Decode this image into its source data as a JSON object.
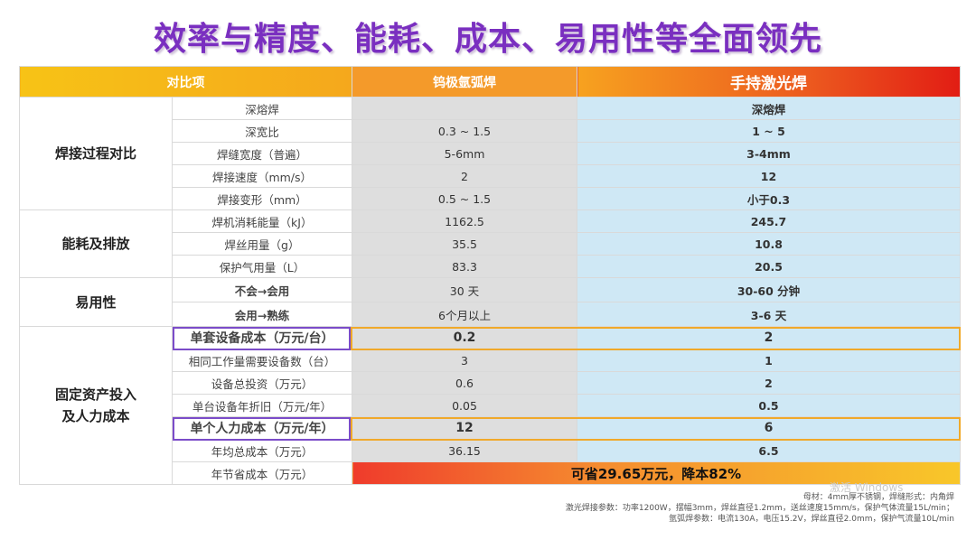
{
  "title": "效率与精度、能耗、成本、易用性等全面领先",
  "headers": {
    "item": "对比项",
    "tig": "钨极氩弧焊",
    "laser": "手持激光焊"
  },
  "categories": {
    "process": "焊接过程对比",
    "energy": "能耗及排放",
    "ease": "易用性",
    "cost_line1": "固定资产投入",
    "cost_line2": "及人力成本"
  },
  "rows": [
    {
      "item": "深熔焊",
      "tig": "",
      "laser": "深熔焊"
    },
    {
      "item": "深宽比",
      "tig": "0.3 ~ 1.5",
      "laser": "1 ~ 5"
    },
    {
      "item": "焊缝宽度（普遍）",
      "tig": "5-6mm",
      "laser": "3-4mm"
    },
    {
      "item": "焊接速度（mm/s）",
      "tig": "2",
      "laser": "12"
    },
    {
      "item": "焊接变形（mm）",
      "tig": "0.5 ~ 1.5",
      "laser": "小于0.3"
    },
    {
      "item": "焊机消耗能量（kJ）",
      "tig": "1162.5",
      "laser": "245.7"
    },
    {
      "item": "焊丝用量（g）",
      "tig": "35.5",
      "laser": "10.8"
    },
    {
      "item": "保护气用量（L）",
      "tig": "83.3",
      "laser": "20.5"
    },
    {
      "item": "不会→会用",
      "tig": "30 天",
      "laser": "30-60 分钟"
    },
    {
      "item": "会用→熟练",
      "tig": "6个月以上",
      "laser": "3-6 天"
    },
    {
      "item": "单套设备成本（万元/台）",
      "tig": "0.2",
      "laser": "2"
    },
    {
      "item": "相同工作量需要设备数（台）",
      "tig": "3",
      "laser": "1"
    },
    {
      "item": "设备总投资（万元）",
      "tig": "0.6",
      "laser": "2"
    },
    {
      "item": "单台设备年折旧（万元/年）",
      "tig": "0.05",
      "laser": "0.5"
    },
    {
      "item": "单个人力成本（万元/年）",
      "tig": "12",
      "laser": "6"
    },
    {
      "item": "年均总成本（万元）",
      "tig": "36.15",
      "laser": "6.5"
    },
    {
      "item": "年节省成本（万元）",
      "saving": "可省29.65万元，降本82%"
    }
  ],
  "notes": {
    "line1": "母材：4mm厚不锈钢，焊缝形式：内角焊",
    "line2": "激光焊接参数：功率1200W，摆幅3mm，焊丝直径1.2mm，送丝速度15mm/s，保护气体流量15L/min；",
    "line3": "氩弧焊参数：电流130A，电压15.2V，焊丝直径2.0mm，保护气流量10L/min"
  },
  "watermark": "激活 Windows",
  "colors": {
    "title": "#7a2fc0",
    "laser_col": "#cfe8f5",
    "tig_col": "#dedede",
    "highlight_purple": "#7b4cc9",
    "highlight_orange": "#f0a92a"
  }
}
